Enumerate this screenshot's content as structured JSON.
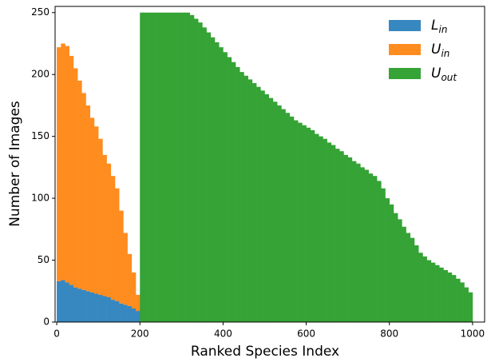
{
  "chart_data": {
    "type": "bar",
    "stacked": true,
    "xlabel": "Ranked Species Index",
    "ylabel": "Number of Images",
    "xlim": [
      -4,
      1029
    ],
    "ylim": [
      0,
      255
    ],
    "xticks": [
      0,
      200,
      400,
      600,
      800,
      1000
    ],
    "yticks": [
      0,
      50,
      100,
      150,
      200,
      250
    ],
    "legend": "upper right",
    "x": [
      0,
      10,
      20,
      30,
      40,
      50,
      60,
      70,
      80,
      90,
      100,
      110,
      120,
      130,
      140,
      150,
      160,
      170,
      180,
      190,
      200,
      210,
      220,
      230,
      240,
      250,
      260,
      270,
      280,
      290,
      300,
      310,
      320,
      330,
      340,
      350,
      360,
      370,
      380,
      390,
      400,
      410,
      420,
      430,
      440,
      450,
      460,
      470,
      480,
      490,
      500,
      510,
      520,
      530,
      540,
      550,
      560,
      570,
      580,
      590,
      600,
      610,
      620,
      630,
      640,
      650,
      660,
      670,
      680,
      690,
      700,
      710,
      720,
      730,
      740,
      750,
      760,
      770,
      780,
      790,
      800,
      810,
      820,
      830,
      840,
      850,
      860,
      870,
      880,
      890,
      900,
      910,
      920,
      930,
      940,
      950,
      960,
      970,
      980,
      990
    ],
    "series": [
      {
        "name": "L_in",
        "color": "#3787c0",
        "values": [
          33,
          34,
          32,
          30,
          28,
          27,
          26,
          25,
          24,
          23,
          22,
          21,
          20,
          18,
          17,
          15,
          14,
          13,
          11,
          9,
          null,
          null,
          null,
          null,
          null,
          null,
          null,
          null,
          null,
          null,
          null,
          null,
          null,
          null,
          null,
          null,
          null,
          null,
          null,
          null,
          null,
          null,
          null,
          null,
          null,
          null,
          null,
          null,
          null,
          null,
          null,
          null,
          null,
          null,
          null,
          null,
          null,
          null,
          null,
          null,
          null,
          null,
          null,
          null,
          null,
          null,
          null,
          null,
          null,
          null,
          null,
          null,
          null,
          null,
          null,
          null,
          null,
          null,
          null,
          null,
          null,
          null,
          null,
          null,
          null,
          null,
          null,
          null,
          null,
          null,
          null,
          null,
          null,
          null,
          null,
          null,
          null,
          null,
          null,
          null
        ]
      },
      {
        "name": "U_in",
        "color": "#ff8c1f",
        "values": [
          189,
          191,
          191,
          185,
          177,
          168,
          159,
          150,
          141,
          135,
          126,
          114,
          108,
          100,
          91,
          75,
          58,
          42,
          29,
          13,
          null,
          null,
          null,
          null,
          null,
          null,
          null,
          null,
          null,
          null,
          null,
          null,
          null,
          null,
          null,
          null,
          null,
          null,
          null,
          null,
          null,
          null,
          null,
          null,
          null,
          null,
          null,
          null,
          null,
          null,
          null,
          null,
          null,
          null,
          null,
          null,
          null,
          null,
          null,
          null,
          null,
          null,
          null,
          null,
          null,
          null,
          null,
          null,
          null,
          null,
          null,
          null,
          null,
          null,
          null,
          null,
          null,
          null,
          null,
          null,
          null,
          null,
          null,
          null,
          null,
          null,
          null,
          null,
          null,
          null,
          null,
          null,
          null,
          null,
          null,
          null,
          null,
          null,
          null,
          null
        ]
      },
      {
        "name": "U_out",
        "color": "#35a335",
        "values": [
          null,
          null,
          null,
          null,
          null,
          null,
          null,
          null,
          null,
          null,
          null,
          null,
          null,
          null,
          null,
          null,
          null,
          null,
          null,
          null,
          250,
          250,
          250,
          250,
          250,
          250,
          250,
          250,
          250,
          250,
          250,
          250,
          248,
          245,
          242,
          238,
          234,
          230,
          226,
          222,
          218,
          214,
          210,
          206,
          202,
          199,
          196,
          193,
          190,
          187,
          184,
          181,
          178,
          175,
          172,
          169,
          166,
          163,
          161,
          159,
          157,
          155,
          152,
          150,
          148,
          145,
          143,
          140,
          138,
          135,
          133,
          130,
          128,
          125,
          123,
          120,
          118,
          114,
          108,
          100,
          95,
          88,
          83,
          77,
          72,
          68,
          62,
          56,
          53,
          50,
          48,
          46,
          44,
          42,
          40,
          38,
          35,
          32,
          28,
          24
        ]
      }
    ]
  }
}
